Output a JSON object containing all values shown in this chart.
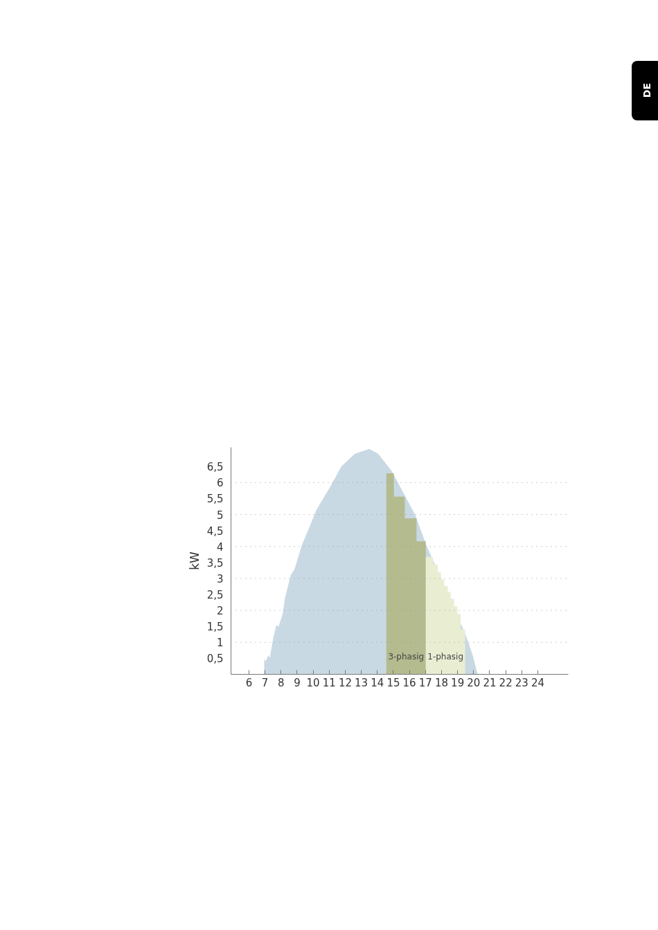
{
  "chart_data": {
    "type": "area",
    "ylabel": "kW",
    "series": [
      {
        "color": "#c9d9e3",
        "x": [
          6.95,
          6.95,
          7.05,
          7.2,
          7.3,
          7.5,
          7.7,
          7.85,
          8.1,
          8.25,
          8.6,
          8.85,
          9.3,
          9.6,
          10.2,
          11.1,
          11.75,
          12.6,
          13.5,
          14.05,
          14.9,
          14.97,
          16.35,
          17.05,
          19.5,
          19.95,
          20.25
        ],
        "values": [
          0,
          0.48,
          0.41,
          0.59,
          0.52,
          1.1,
          1.53,
          1.5,
          1.89,
          2.4,
          3.1,
          3.3,
          4.05,
          4.4,
          5.14,
          5.9,
          6.5,
          6.9,
          7.05,
          6.9,
          6.36,
          6.29,
          5.0,
          4.05,
          1.24,
          0.59,
          0
        ]
      },
      {
        "color": "#b4bb8f",
        "x": [
          14.56,
          14.56,
          15.03,
          15.03,
          15.71,
          15.71,
          16.44,
          16.44,
          17.02,
          17.02
        ],
        "values": [
          0,
          6.29,
          6.29,
          5.56,
          5.56,
          4.88,
          4.88,
          4.16,
          4.16,
          0
        ]
      },
      {
        "color": "#e9eed3",
        "x": [
          17.02,
          17.02,
          17.48,
          17.48,
          17.77,
          17.77,
          17.97,
          17.97,
          18.17,
          18.17,
          18.39,
          18.39,
          18.57,
          18.57,
          18.79,
          18.79,
          18.99,
          18.99,
          19.19,
          19.19,
          19.47,
          19.47
        ],
        "values": [
          0,
          3.67,
          3.67,
          3.43,
          3.43,
          3.19,
          3.19,
          2.97,
          2.97,
          2.76,
          2.76,
          2.58,
          2.58,
          2.36,
          2.36,
          2.12,
          2.12,
          1.89,
          1.89,
          1.4,
          1.4,
          0
        ]
      }
    ],
    "annotations": [
      "3-phasig",
      "1-phasig",
      "DE"
    ],
    "xlim": [
      4.88,
      25.9
    ],
    "ylim": [
      0,
      7.1
    ],
    "xticks": [
      6,
      7,
      8,
      9,
      10,
      11,
      12,
      13,
      14,
      15,
      16,
      17,
      18,
      19,
      20,
      21,
      22,
      23,
      24
    ],
    "yticks": [
      {
        "value": 0.5,
        "label": "0,5"
      },
      1,
      {
        "value": 1.5,
        "label": "1,5"
      },
      2,
      {
        "value": 2.5,
        "label": "2,5"
      },
      3,
      {
        "value": 3.5,
        "label": "3,5"
      },
      4,
      {
        "value": 4.5,
        "label": "4,5"
      },
      5,
      {
        "value": 5.5,
        "label": "5,5"
      },
      6,
      {
        "value": 6.5,
        "label": "6,5"
      }
    ],
    "grid": "y"
  }
}
